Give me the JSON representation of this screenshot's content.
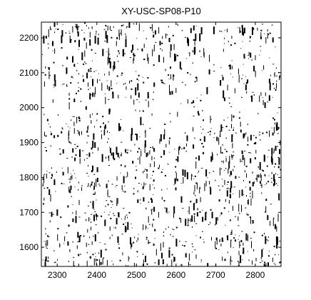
{
  "chart_data": {
    "type": "scatter",
    "title": "XY-USC-SP08-P10",
    "xlabel": "",
    "ylabel": "",
    "xlim": [
      2260,
      2865
    ],
    "ylim": [
      1545,
      2245
    ],
    "grid": false,
    "xticks": [
      2300,
      2400,
      2500,
      2600,
      2700,
      2800
    ],
    "yticks": [
      1600,
      1700,
      1800,
      1900,
      2000,
      2100,
      2200
    ],
    "xtick_labels": [
      "2300",
      "2400",
      "2500",
      "2600",
      "2700",
      "2800"
    ],
    "ytick_labels": [
      "1600",
      "1700",
      "1800",
      "1900",
      "2000",
      "2100",
      "2200"
    ],
    "point_color": "#000000",
    "dense_x_bands": [
      [
        2262,
        2292
      ],
      [
        2322,
        2362
      ],
      [
        2368,
        2400
      ],
      [
        2418,
        2455
      ],
      [
        2462,
        2505
      ],
      [
        2515,
        2545
      ],
      [
        2562,
        2600
      ],
      [
        2640,
        2668
      ],
      [
        2712,
        2748
      ],
      [
        2755,
        2800
      ],
      [
        2810,
        2858
      ]
    ],
    "dense_y_bands": [
      [
        1548,
        1575
      ],
      [
        1610,
        1640
      ],
      [
        1680,
        1705
      ],
      [
        1770,
        1830
      ],
      [
        1855,
        1890
      ],
      [
        1920,
        1950
      ],
      [
        2065,
        2098
      ],
      [
        2150,
        2170
      ],
      [
        2210,
        2240
      ]
    ],
    "sparse_y_bands": [
      [
        1985,
        2015
      ]
    ]
  }
}
